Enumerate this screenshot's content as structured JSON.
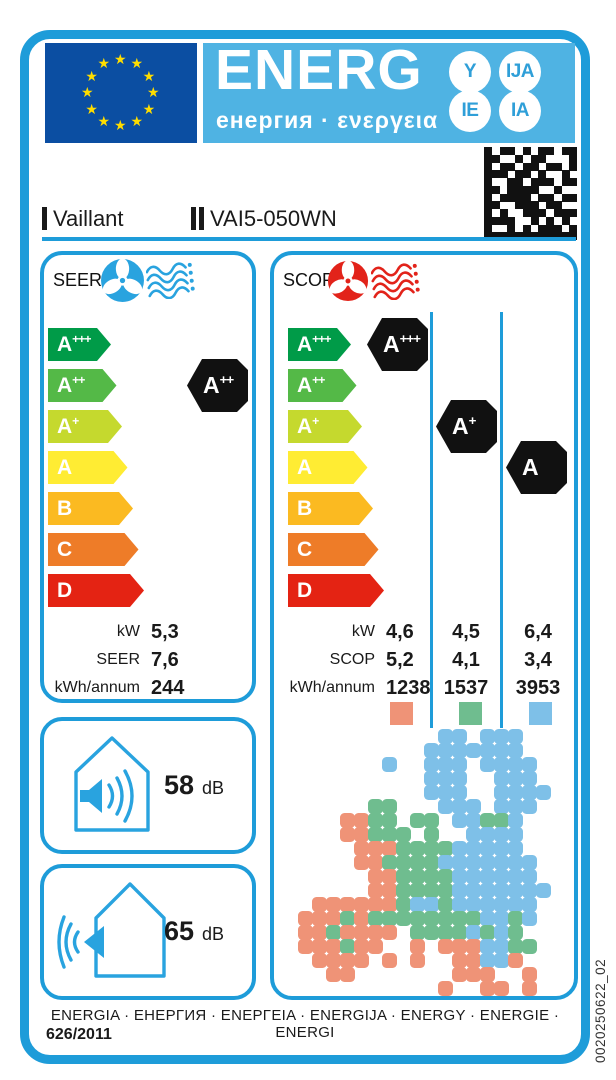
{
  "header": {
    "title": "ENERG",
    "subtitle": "енергия · ενεργεια",
    "badges": [
      "Y",
      "IJA",
      "IE",
      "IA"
    ],
    "flag_stars": 12
  },
  "supplier": {
    "mark_1": "I",
    "name": "Vaillant",
    "mark_2": "II",
    "model": "VAI5-050WN"
  },
  "datamatrix": {
    "rows": [
      "101101011011",
      "110010110001",
      "101101101101",
      "111011010010",
      "100110111011",
      "110111100100",
      "101111011011",
      "110011101100",
      "101001110111",
      "111100101010",
      "100101011101",
      "111111111111"
    ]
  },
  "scale_grades": [
    {
      "base": "A",
      "sup": "+++"
    },
    {
      "base": "A",
      "sup": "++"
    },
    {
      "base": "A",
      "sup": "+"
    },
    {
      "base": "A",
      "sup": ""
    },
    {
      "base": "B",
      "sup": ""
    },
    {
      "base": "C",
      "sup": ""
    },
    {
      "base": "D",
      "sup": ""
    }
  ],
  "seer": {
    "label": "SEER",
    "indicator": {
      "base": "A",
      "sup": "++",
      "row": 1,
      "column": 0
    },
    "values": {
      "kw_label": "kW",
      "kw": "5,3",
      "eff_label": "SEER",
      "eff": "7,6",
      "annum_label": "kWh/annum",
      "annum": "244"
    }
  },
  "scop": {
    "label": "SCOP",
    "indicators": [
      {
        "base": "A",
        "sup": "+++",
        "row": 0,
        "column": 0
      },
      {
        "base": "A",
        "sup": "+",
        "row": 2,
        "column": 1
      },
      {
        "base": "A",
        "sup": "",
        "row": 3,
        "column": 2
      }
    ],
    "values": {
      "kw_label": "kW",
      "kw": [
        "4,6",
        "4,5",
        "6,4"
      ],
      "eff_label": "SCOP",
      "eff": [
        "5,2",
        "4,1",
        "3,4"
      ],
      "annum_label": "kWh/annum",
      "annum": [
        "1238",
        "1537",
        "3953"
      ]
    },
    "zones": [
      "warmer",
      "average",
      "colder"
    ]
  },
  "map": {
    "grid": [
      "..........cc.ccc....",
      ".........ccccccc....",
      "......c..ccc.cccc...",
      ".........ccc..ccc...",
      ".........ccc..cccc..",
      ".....aa...ccc.ccc...",
      "...wwaa.aa.ccaac....",
      "...wwaaa.a..cccc....",
      "....wwwaaaaccccc....",
      "....wwaaaaccccccc...",
      ".....wwaaaacccccc...",
      ".....wwaaaaccccccc..",
      ".wwwwwwaccacccccc...",
      "wwwawaaaaaaaaccac...",
      "wwawwww.aaaacaca....",
      "wwwaww..w.wwwccaa...",
      ".wwww.w.w..wwccw....",
      "..ww.......www..w...",
      "..........w..ww.w..."
    ]
  },
  "noise": {
    "indoor": {
      "value": "58",
      "unit": "dB"
    },
    "outdoor": {
      "value": "65",
      "unit": "dB"
    }
  },
  "footer": {
    "languages": "ENERGIA · ЕНЕРГИЯ · ΕΝΕΡΓΕΙΑ · ENERGIJA · ENERGY · ENERGIE · ENERGI",
    "regulation": "626/2011"
  },
  "side_code": "0020250622_02",
  "colors": {
    "border_blue": "#1E9CD9",
    "banner_blue": "#4FB3E3",
    "flag_blue": "#0B4EA2",
    "star_yellow": "#FFDD00",
    "seer_accent": "#29A3DF",
    "scop_accent": "#E2231A",
    "scale": [
      "#009B48",
      "#54B947",
      "#C5D92E",
      "#FFEC33",
      "#FBBA21",
      "#EE7C28",
      "#E42313"
    ],
    "zones": {
      "warmer": "#EF9377",
      "average": "#6FBD8F",
      "colder": "#7EC0E8"
    }
  }
}
